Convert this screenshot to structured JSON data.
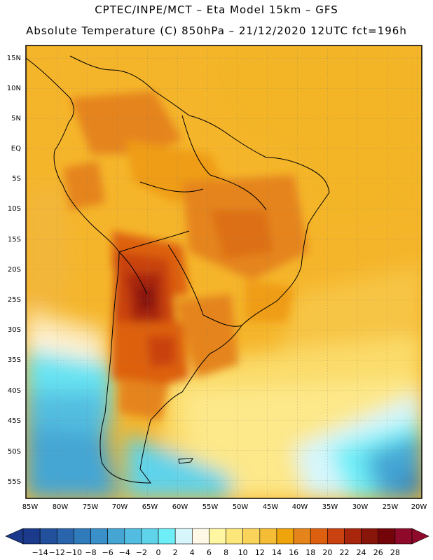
{
  "header": {
    "line1": "CPTEC/INPE/MCT –  Eta Model 15km – GFS",
    "line2": "Absolute Temperature (C) 850hPa – 21/12/2020 12UTC fct=196h"
  },
  "map": {
    "lat_labels": [
      "15N",
      "10N",
      "5N",
      "EQ",
      "5S",
      "10S",
      "15S",
      "20S",
      "25S",
      "30S",
      "35S",
      "40S",
      "45S",
      "50S",
      "55S"
    ],
    "lon_labels": [
      "85W",
      "80W",
      "75W",
      "70W",
      "65W",
      "60W",
      "55W",
      "50W",
      "45W",
      "40W",
      "35W",
      "30W",
      "25W",
      "20W"
    ]
  },
  "colorbar": {
    "labels": [
      "-14",
      "-12",
      "-10",
      "-8",
      "-6",
      "-4",
      "-2",
      "0",
      "2",
      "4",
      "6",
      "8",
      "10",
      "12",
      "14",
      "16",
      "18",
      "20",
      "22",
      "24",
      "26",
      "28"
    ],
    "colors": [
      "#1b3a8c",
      "#22509c",
      "#2a64ac",
      "#2f7bbb",
      "#3a90c8",
      "#45a6d4",
      "#52bde0",
      "#5fd3ea",
      "#6eeef7",
      "#d6f6fb",
      "#fff8e6",
      "#fff6a2",
      "#fde77a",
      "#f9d35a",
      "#f5bd36",
      "#efa40c",
      "#e5841a",
      "#dd6010",
      "#c9420f",
      "#a8260c",
      "#871509",
      "#73050a",
      "#8f0a2a"
    ]
  }
}
